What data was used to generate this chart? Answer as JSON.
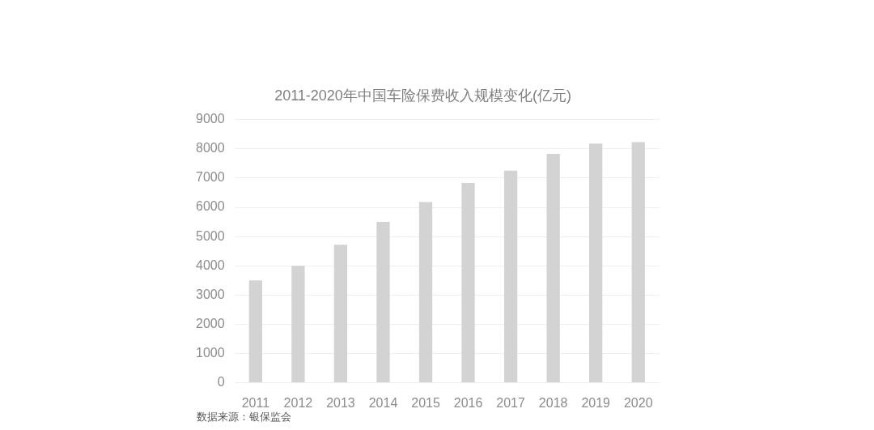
{
  "chart_data": {
    "type": "bar",
    "title": "2011-2020年中国车险保费收入规模变化(亿元)",
    "categories": [
      "2011",
      "2012",
      "2013",
      "2014",
      "2015",
      "2016",
      "2017",
      "2018",
      "2019",
      "2020"
    ],
    "values": [
      3500,
      4000,
      4720,
      5500,
      6180,
      6830,
      7250,
      7830,
      8180,
      8230
    ],
    "color": "#d3d3d3",
    "ylim": [
      0,
      9000
    ],
    "yticks": [
      0,
      1000,
      2000,
      3000,
      4000,
      5000,
      6000,
      7000,
      8000,
      9000
    ],
    "grid": "y",
    "annotations": [
      "数据来源：银保监会"
    ]
  }
}
